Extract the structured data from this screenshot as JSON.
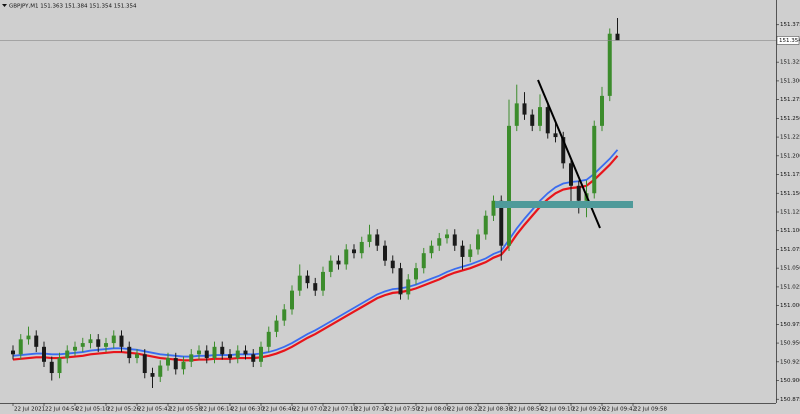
{
  "chart_data": {
    "type": "candlestick",
    "symbol": "GBPJPY,M1",
    "categories": [
      "22 Jul 2021",
      null,
      null,
      null,
      "22 Jul 04:54",
      null,
      null,
      null,
      "22 Jul 05:10",
      null,
      null,
      null,
      "22 Jul 05:26",
      null,
      null,
      null,
      "22 Jul 05:42",
      null,
      null,
      null,
      "22 Jul 05:58",
      null,
      null,
      null,
      "22 Jul 06:14",
      null,
      null,
      null,
      "22 Jul 06:30",
      null,
      null,
      null,
      "22 Jul 06:46",
      null,
      null,
      null,
      "22 Jul 07:02",
      null,
      null,
      null,
      "22 Jul 07:18",
      null,
      null,
      null,
      "22 Jul 07:34",
      null,
      null,
      null,
      "22 Jul 07:50",
      null,
      null,
      null,
      "22 Jul 08:06",
      null,
      null,
      null,
      "22 Jul 08:22",
      null,
      null,
      null,
      "22 Jul 08:38",
      null,
      null,
      null,
      "22 Jul 08:54",
      null,
      null,
      null,
      "22 Jul 09:10",
      null,
      null,
      null,
      "22 Jul 09:26",
      null,
      null,
      null,
      "22 Jul 09:42",
      null,
      null,
      null,
      "22 Jul 09:58"
    ],
    "ohlc": [
      [
        150.94,
        150.947,
        150.928,
        150.935
      ],
      [
        150.935,
        150.962,
        150.928,
        150.955
      ],
      [
        150.955,
        150.972,
        150.948,
        150.96
      ],
      [
        150.96,
        150.967,
        150.938,
        150.945
      ],
      [
        150.945,
        150.952,
        150.918,
        150.925
      ],
      [
        150.925,
        150.932,
        150.9,
        150.91
      ],
      [
        150.91,
        150.937,
        150.903,
        150.93
      ],
      [
        150.93,
        150.947,
        150.923,
        150.94
      ],
      [
        150.94,
        150.952,
        150.933,
        150.945
      ],
      [
        150.945,
        150.957,
        150.938,
        150.95
      ],
      [
        150.95,
        150.962,
        150.943,
        150.955
      ],
      [
        150.955,
        150.962,
        150.938,
        150.945
      ],
      [
        150.945,
        150.957,
        150.938,
        150.95
      ],
      [
        150.95,
        150.967,
        150.943,
        150.96
      ],
      [
        150.96,
        150.967,
        150.938,
        150.945
      ],
      [
        150.945,
        150.952,
        150.923,
        150.93
      ],
      [
        150.93,
        150.942,
        150.923,
        150.935
      ],
      [
        150.935,
        150.942,
        150.903,
        150.91
      ],
      [
        150.91,
        150.917,
        150.89,
        150.905
      ],
      [
        150.905,
        150.927,
        150.898,
        150.92
      ],
      [
        150.92,
        150.937,
        150.913,
        150.93
      ],
      [
        150.93,
        150.937,
        150.908,
        150.915
      ],
      [
        150.915,
        150.932,
        150.908,
        150.925
      ],
      [
        150.925,
        150.942,
        150.918,
        150.935
      ],
      [
        150.935,
        150.947,
        150.928,
        150.94
      ],
      [
        150.94,
        150.947,
        150.923,
        150.93
      ],
      [
        150.93,
        150.952,
        150.923,
        150.945
      ],
      [
        150.945,
        150.952,
        150.928,
        150.935
      ],
      [
        150.935,
        150.942,
        150.923,
        150.93
      ],
      [
        150.93,
        150.947,
        150.923,
        150.94
      ],
      [
        150.94,
        150.947,
        150.928,
        150.935
      ],
      [
        150.935,
        150.942,
        150.918,
        150.925
      ],
      [
        150.925,
        150.952,
        150.918,
        150.945
      ],
      [
        150.945,
        150.972,
        150.938,
        150.965
      ],
      [
        150.965,
        150.987,
        150.958,
        150.98
      ],
      [
        150.98,
        151.002,
        150.973,
        150.995
      ],
      [
        150.995,
        151.027,
        150.988,
        151.02
      ],
      [
        151.02,
        151.055,
        151.013,
        151.04
      ],
      [
        151.04,
        151.047,
        151.023,
        151.03
      ],
      [
        151.03,
        151.037,
        151.013,
        151.02
      ],
      [
        151.02,
        151.052,
        151.013,
        151.045
      ],
      [
        151.045,
        151.067,
        151.038,
        151.06
      ],
      [
        151.06,
        151.067,
        151.048,
        151.055
      ],
      [
        151.055,
        151.082,
        151.048,
        151.075
      ],
      [
        151.075,
        151.082,
        151.063,
        151.07
      ],
      [
        151.07,
        151.092,
        151.063,
        151.085
      ],
      [
        151.085,
        151.108,
        151.078,
        151.095
      ],
      [
        151.095,
        151.102,
        151.073,
        151.08
      ],
      [
        151.08,
        151.087,
        151.053,
        151.06
      ],
      [
        151.06,
        151.067,
        151.043,
        151.05
      ],
      [
        151.05,
        151.057,
        151.008,
        151.015
      ],
      [
        151.015,
        151.042,
        151.008,
        151.035
      ],
      [
        151.035,
        151.057,
        151.028,
        151.05
      ],
      [
        151.05,
        151.077,
        151.043,
        151.07
      ],
      [
        151.07,
        151.087,
        151.063,
        151.08
      ],
      [
        151.08,
        151.097,
        151.073,
        151.09
      ],
      [
        151.09,
        151.102,
        151.083,
        151.095
      ],
      [
        151.095,
        151.102,
        151.073,
        151.08
      ],
      [
        151.08,
        151.087,
        151.048,
        151.065
      ],
      [
        151.065,
        151.082,
        151.058,
        151.075
      ],
      [
        151.075,
        151.102,
        151.068,
        151.095
      ],
      [
        151.095,
        151.127,
        151.088,
        151.12
      ],
      [
        151.12,
        151.147,
        151.113,
        151.14
      ],
      [
        151.14,
        151.147,
        151.06,
        151.08
      ],
      [
        151.08,
        151.275,
        151.073,
        151.24
      ],
      [
        151.24,
        151.295,
        151.233,
        151.27
      ],
      [
        151.27,
        151.285,
        151.248,
        151.255
      ],
      [
        151.255,
        151.262,
        151.233,
        151.24
      ],
      [
        151.24,
        151.282,
        151.233,
        151.265
      ],
      [
        151.265,
        151.272,
        151.223,
        151.23
      ],
      [
        151.23,
        151.245,
        151.218,
        151.225
      ],
      [
        151.225,
        151.232,
        151.183,
        151.19
      ],
      [
        151.19,
        151.197,
        151.133,
        151.16
      ],
      [
        151.16,
        151.167,
        151.123,
        151.14
      ],
      [
        151.14,
        151.167,
        151.118,
        151.15
      ],
      [
        151.15,
        151.247,
        151.143,
        151.24
      ],
      [
        151.24,
        151.292,
        151.233,
        151.28
      ],
      [
        151.28,
        151.37,
        151.273,
        151.363
      ],
      [
        151.363,
        151.384,
        151.354,
        151.354
      ],
      null,
      null
    ],
    "up_color": "#3c8c2c",
    "down_color": "#1a1a1a",
    "ma_lines": [
      {
        "color": "#e8151b",
        "values": [
          150.928,
          150.929,
          150.93,
          150.931,
          150.931,
          150.93,
          150.93,
          150.931,
          150.932,
          150.933,
          150.935,
          150.936,
          150.937,
          150.938,
          150.938,
          150.937,
          150.936,
          150.934,
          150.932,
          150.93,
          150.929,
          150.928,
          150.927,
          150.927,
          150.928,
          150.928,
          150.929,
          150.929,
          150.929,
          150.93,
          150.93,
          150.93,
          150.931,
          150.933,
          150.936,
          150.94,
          150.945,
          150.951,
          150.957,
          150.962,
          150.968,
          150.974,
          150.98,
          150.986,
          150.992,
          150.998,
          151.004,
          151.01,
          151.014,
          151.017,
          151.018,
          151.02,
          151.023,
          151.027,
          151.031,
          151.035,
          151.04,
          151.044,
          151.047,
          151.05,
          151.054,
          151.058,
          151.064,
          151.068,
          151.08,
          151.095,
          151.108,
          151.12,
          151.132,
          151.142,
          151.15,
          151.155,
          151.157,
          151.158,
          151.16,
          151.168,
          151.178,
          151.188,
          151.2,
          null,
          null
        ]
      },
      {
        "color": "#3a6cf0",
        "values": [
          150.933,
          150.934,
          150.935,
          150.936,
          150.936,
          150.935,
          150.935,
          150.936,
          150.937,
          150.938,
          150.94,
          150.941,
          150.942,
          150.943,
          150.943,
          150.942,
          150.941,
          150.939,
          150.937,
          150.935,
          150.934,
          150.933,
          150.932,
          150.932,
          150.933,
          150.933,
          150.934,
          150.934,
          150.934,
          150.935,
          150.935,
          150.935,
          150.936,
          150.938,
          150.941,
          150.945,
          150.95,
          150.956,
          150.962,
          150.967,
          150.973,
          150.979,
          150.985,
          150.991,
          150.997,
          151.003,
          151.009,
          151.015,
          151.019,
          151.022,
          151.023,
          151.025,
          151.028,
          151.032,
          151.036,
          151.04,
          151.045,
          151.049,
          151.052,
          151.055,
          151.059,
          151.063,
          151.069,
          151.073,
          151.088,
          151.103,
          151.116,
          151.128,
          151.14,
          151.15,
          151.158,
          151.163,
          151.165,
          151.166,
          151.168,
          151.176,
          151.186,
          151.196,
          151.208,
          null,
          null
        ]
      }
    ],
    "ylim": [
      150.87,
      151.408
    ],
    "yticks": [
      150.875,
      {
        "value": 150.9,
        "label": "150.900"
      },
      150.925,
      {
        "value": 150.95,
        "label": "150.950"
      },
      150.975,
      {
        "value": 151.0,
        "label": "151.000"
      },
      151.025,
      {
        "value": 151.05,
        "label": "151.050"
      },
      151.075,
      {
        "value": 151.1,
        "label": "151.100"
      },
      151.125,
      {
        "value": 151.15,
        "label": "151.150"
      },
      151.175,
      {
        "value": 151.2,
        "label": "151.200"
      },
      151.225,
      {
        "value": 151.25,
        "label": "151.250"
      },
      151.275,
      {
        "value": 151.3,
        "label": "151.300"
      },
      151.325,
      151.375
    ]
  }
}
